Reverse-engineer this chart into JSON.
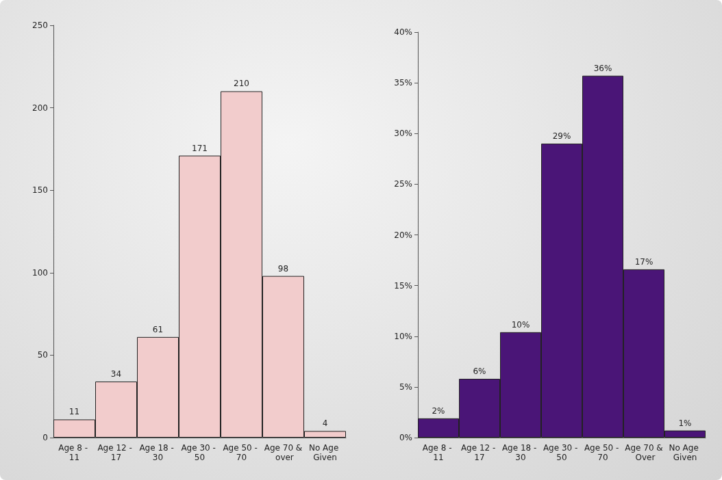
{
  "chart_data": [
    {
      "type": "bar",
      "categories": [
        "Age 8 - 11",
        "Age 12 - 17",
        "Age 18 - 30",
        "Age 30 - 50",
        "Age 50 - 70",
        "Age 70 & over",
        "No Age Given"
      ],
      "values": [
        11,
        34,
        61,
        171,
        210,
        98,
        4
      ],
      "color": "#f2cccc",
      "ylim": [
        0,
        250
      ],
      "yticks": [
        0,
        50,
        100,
        150,
        200,
        250
      ],
      "grid": false,
      "data_labels": true
    },
    {
      "type": "bar",
      "categories": [
        "Age 8 - 11",
        "Age 12 - 17",
        "Age 18 - 30",
        "Age 30 - 50",
        "Age 50 - 70",
        "Age 70 & Over",
        "No Age Given"
      ],
      "values": [
        1.9,
        5.8,
        10.4,
        29.0,
        35.7,
        16.6,
        0.7
      ],
      "value_labels": [
        "2%",
        "6%",
        "10%",
        "29%",
        "36%",
        "17%",
        "1%"
      ],
      "color": "#4a1577",
      "ylim": [
        0,
        40
      ],
      "yticks": [
        {
          "value": 0,
          "label": "0%"
        },
        {
          "value": 5,
          "label": "5%"
        },
        {
          "value": 10,
          "label": "10%"
        },
        {
          "value": 15,
          "label": "15%"
        },
        {
          "value": 20,
          "label": "20%"
        },
        {
          "value": 25,
          "label": "25%"
        },
        {
          "value": 30,
          "label": "30%"
        },
        {
          "value": 35,
          "label": "35%"
        },
        {
          "value": 40,
          "label": "40%"
        }
      ],
      "grid": false
    }
  ]
}
